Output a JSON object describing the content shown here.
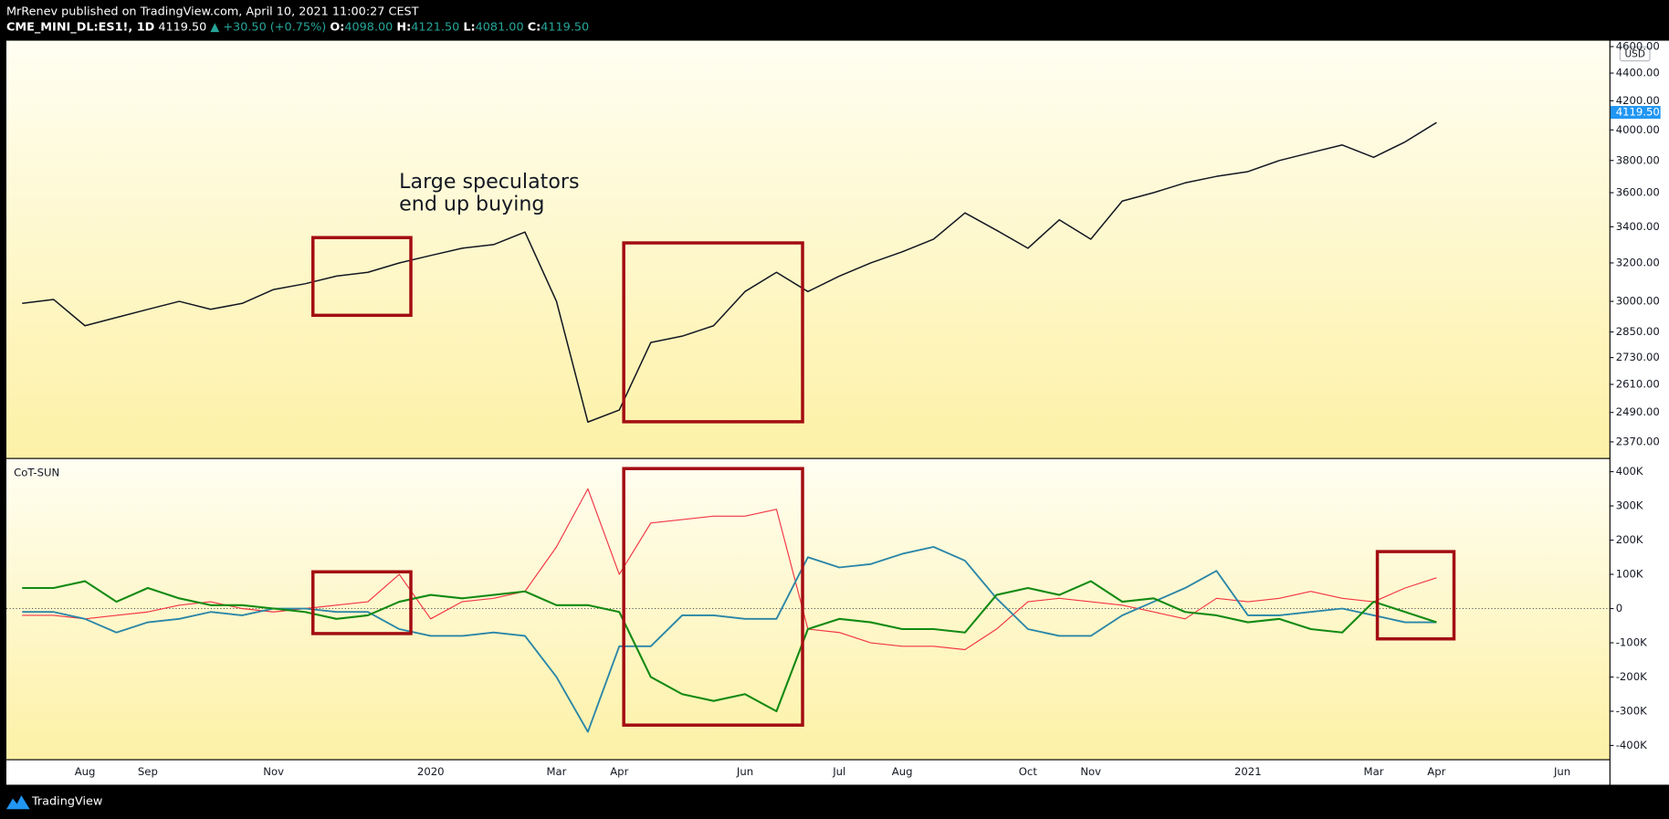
{
  "header": {
    "byline": "MrRenev published on TradingView.com, April 10, 2021 11:00:27 CEST",
    "symbol": "CME_MINI_DL:ES1!, 1D",
    "last": "4119.50",
    "change": "▲ +30.50 (+0.75%)",
    "o_label": "O:",
    "o": "4098.00",
    "h_label": "H:",
    "h": "4121.50",
    "l_label": "L:",
    "l": "4081.00",
    "c_label": "C:",
    "c": "4119.50"
  },
  "chart_data": [
    {
      "type": "line",
      "log_scale": true,
      "color": "#131722",
      "currency": "USD",
      "annotation": [
        "Large speculators",
        "end up buying"
      ],
      "categories": [
        null,
        null,
        "Aug",
        null,
        "Sep",
        null,
        null,
        null,
        "Nov",
        null,
        null,
        null,
        null,
        "2020",
        null,
        null,
        null,
        "Mar",
        null,
        "Apr",
        null,
        null,
        null,
        "Jun",
        null,
        null,
        "Jul",
        null,
        "Aug",
        null,
        null,
        null,
        "Oct",
        null,
        "Nov",
        null,
        null,
        null,
        null,
        "2021",
        null,
        null,
        null,
        "Mar",
        null,
        "Apr",
        null,
        null,
        null,
        "Jun",
        null
      ],
      "values": [
        2990,
        3010,
        2880,
        2920,
        2960,
        3000,
        2960,
        2990,
        3060,
        3090,
        3130,
        3150,
        3200,
        3240,
        3280,
        3300,
        3370,
        3000,
        2450,
        2500,
        2800,
        2830,
        2880,
        3050,
        3150,
        3050,
        3130,
        3200,
        3260,
        3330,
        3480,
        3380,
        3280,
        3440,
        3330,
        3550,
        3600,
        3660,
        3700,
        3730,
        3800,
        3850,
        3900,
        3820,
        3920,
        4050,
        null,
        null,
        null,
        null,
        null
      ],
      "ylim": [
        2307,
        4646
      ],
      "yticks": [
        {
          "value": 2370,
          "label": "2370.00"
        },
        {
          "value": 2490,
          "label": "2490.00"
        },
        {
          "value": 2610,
          "label": "2610.00"
        },
        {
          "value": 2730,
          "label": "2730.00"
        },
        {
          "value": 2850,
          "label": "2850.00"
        },
        {
          "value": 3000,
          "label": "3000.00"
        },
        {
          "value": 3200,
          "label": "3200.00"
        },
        {
          "value": 3400,
          "label": "3400.00"
        },
        {
          "value": 3600,
          "label": "3600.00"
        },
        {
          "value": 3800,
          "label": "3800.00"
        },
        {
          "value": 4000,
          "label": "4000.00"
        },
        {
          "value": 4200,
          "label": "4200.00"
        },
        {
          "value": 4400,
          "label": "4400.00"
        },
        {
          "value": 4600,
          "label": "4600.00"
        }
      ]
    },
    {
      "type": "line",
      "title": "CoT-SUN",
      "zero_line": true,
      "series": [
        {
          "color": "#f23645",
          "width": 1,
          "values": [
            -20000,
            -20000,
            -30000,
            -20000,
            -10000,
            10000,
            20000,
            0,
            -10000,
            0,
            10000,
            20000,
            100000,
            -30000,
            20000,
            30000,
            50000,
            180000,
            350000,
            100000,
            250000,
            260000,
            270000,
            270000,
            290000,
            -60000,
            -70000,
            -100000,
            -110000,
            -110000,
            -120000,
            -60000,
            20000,
            30000,
            20000,
            10000,
            -10000,
            -30000,
            30000,
            20000,
            30000,
            50000,
            30000,
            20000,
            60000,
            90000,
            null,
            null,
            null,
            null,
            null
          ]
        },
        {
          "color": "#2a86a8",
          "width": 1.6,
          "values": [
            -10000,
            -10000,
            -30000,
            -70000,
            -40000,
            -30000,
            -10000,
            -20000,
            0,
            0,
            -10000,
            -10000,
            -60000,
            -80000,
            -80000,
            -70000,
            -80000,
            -200000,
            -360000,
            -110000,
            -110000,
            -20000,
            -20000,
            -30000,
            -30000,
            150000,
            120000,
            130000,
            160000,
            180000,
            140000,
            30000,
            -60000,
            -80000,
            -80000,
            -20000,
            20000,
            60000,
            110000,
            -20000,
            -20000,
            -10000,
            0,
            -20000,
            -40000,
            -40000,
            null,
            null,
            null,
            null,
            null
          ]
        },
        {
          "color": "#138a13",
          "width": 1.8,
          "values": [
            60000,
            60000,
            80000,
            20000,
            60000,
            30000,
            10000,
            10000,
            0,
            -10000,
            -30000,
            -20000,
            20000,
            40000,
            30000,
            40000,
            50000,
            10000,
            10000,
            -10000,
            -200000,
            -250000,
            -270000,
            -250000,
            -300000,
            -60000,
            -30000,
            -40000,
            -60000,
            -60000,
            -70000,
            40000,
            60000,
            40000,
            80000,
            20000,
            30000,
            -10000,
            -20000,
            -40000,
            -30000,
            -60000,
            -70000,
            20000,
            -10000,
            -40000,
            null,
            null,
            null,
            null,
            null
          ]
        }
      ],
      "ylim": [
        -440000,
        437000
      ],
      "yticks": [
        {
          "value": 400000,
          "label": "400K"
        },
        {
          "value": 300000,
          "label": "300K"
        },
        {
          "value": 200000,
          "label": "200K"
        },
        {
          "value": 100000,
          "label": "100K"
        },
        0,
        {
          "value": -100000,
          "label": "-100K"
        },
        {
          "value": -200000,
          "label": "-200K"
        },
        {
          "value": -300000,
          "label": "-300K"
        },
        {
          "value": -400000,
          "label": "-400K"
        }
      ]
    }
  ],
  "footer": "TradingView"
}
